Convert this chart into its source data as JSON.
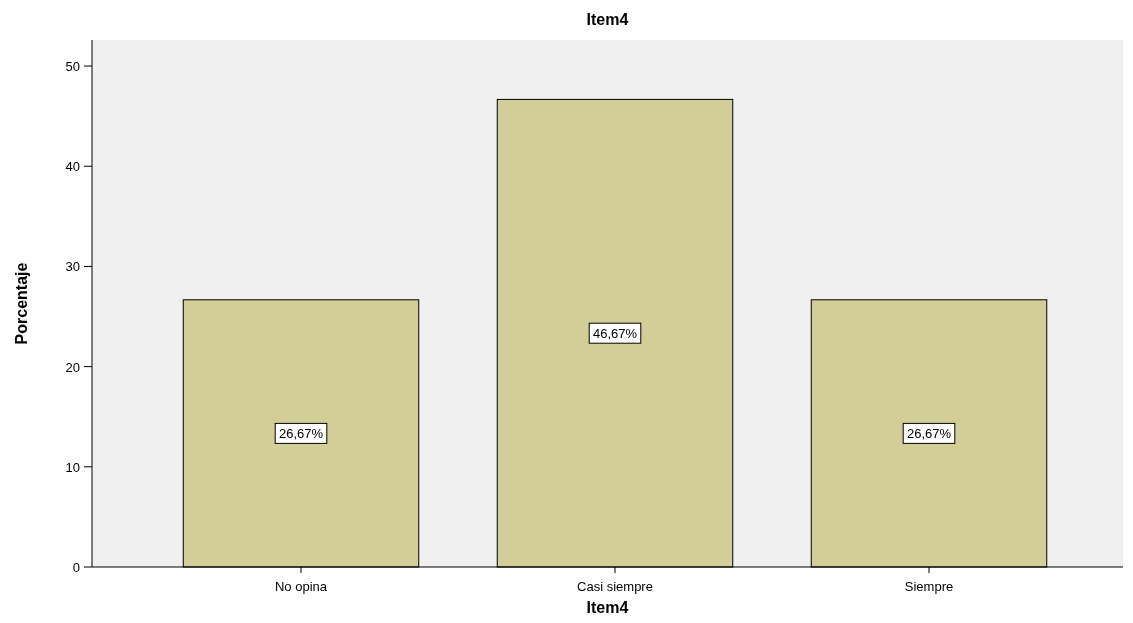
{
  "chart_data": {
    "type": "bar",
    "title": "Item4",
    "xlabel": "Item4",
    "ylabel": "Porcentaje",
    "categories": [
      "No opina",
      "Casi siempre",
      "Siempre"
    ],
    "values": [
      26.67,
      46.67,
      26.67
    ],
    "value_labels": [
      "26,67%",
      "46,67%",
      "26,67%"
    ],
    "color": "#d3ce97",
    "ylim": [
      0,
      52.6
    ],
    "yticks": [
      0,
      10,
      20,
      30,
      40,
      50
    ]
  }
}
